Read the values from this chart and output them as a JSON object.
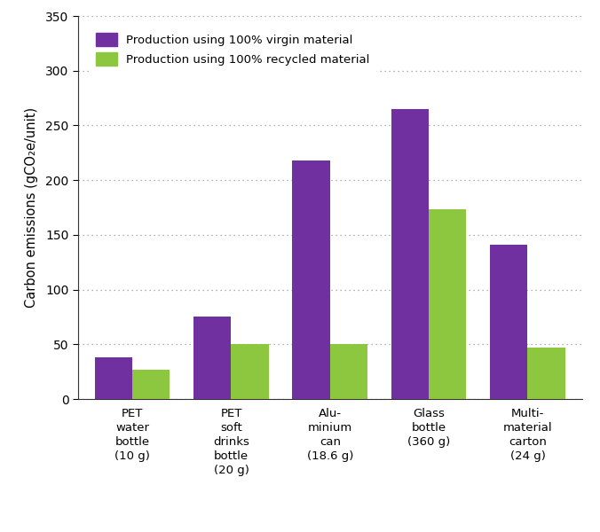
{
  "categories": [
    "PET\nwater\nbottle\n(10 g)",
    "PET\nsoft\ndrinks\nbottle\n(20 g)",
    "Alu-\nminium\ncan\n(18.6 g)",
    "Glass\nbottle\n(360 g)",
    "Multi-\nmaterial\ncarton\n(24 g)"
  ],
  "virgin_values": [
    38,
    75,
    218,
    265,
    141
  ],
  "recycled_values": [
    27,
    50,
    50,
    173,
    47
  ],
  "virgin_color": "#7030A0",
  "recycled_color": "#8DC63F",
  "ylabel": "Carbon emissions (gCO₂e/unit)",
  "ylim": [
    0,
    350
  ],
  "yticks": [
    0,
    50,
    100,
    150,
    200,
    250,
    300,
    350
  ],
  "legend_virgin": "Production using 100% virgin material",
  "legend_recycled": "Production using 100% recycled material",
  "bar_width": 0.38,
  "background_color": "#ffffff",
  "grid_color": "#999999"
}
